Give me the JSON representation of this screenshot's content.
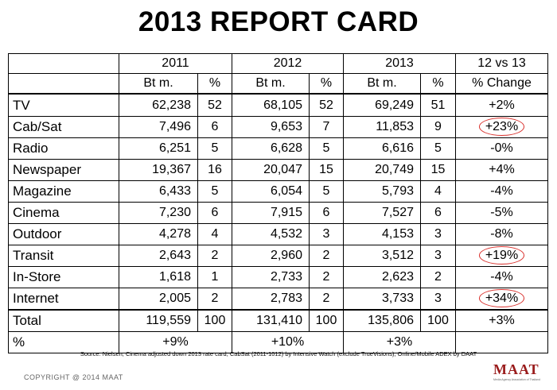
{
  "title": "2013 REPORT CARD",
  "headers": {
    "years": [
      "2011",
      "2012",
      "2013"
    ],
    "compare": "12 vs 13",
    "bt": "Bt m.",
    "pct": "%",
    "change": "% Change"
  },
  "rows": [
    {
      "label": "TV",
      "v2011": "62,238",
      "p2011": "52",
      "v2012": "68,105",
      "p2012": "52",
      "v2013": "69,249",
      "p2013": "51",
      "change": "+2%",
      "circled": false
    },
    {
      "label": "Cab/Sat",
      "v2011": "7,496",
      "p2011": "6",
      "v2012": "9,653",
      "p2012": "7",
      "v2013": "11,853",
      "p2013": "9",
      "change": "+23%",
      "circled": true
    },
    {
      "label": "Radio",
      "v2011": "6,251",
      "p2011": "5",
      "v2012": "6,628",
      "p2012": "5",
      "v2013": "6,616",
      "p2013": "5",
      "change": "-0%",
      "circled": false
    },
    {
      "label": "Newspaper",
      "v2011": "19,367",
      "p2011": "16",
      "v2012": "20,047",
      "p2012": "15",
      "v2013": "20,749",
      "p2013": "15",
      "change": "+4%",
      "circled": false
    },
    {
      "label": "Magazine",
      "v2011": "6,433",
      "p2011": "5",
      "v2012": "6,054",
      "p2012": "5",
      "v2013": "5,793",
      "p2013": "4",
      "change": "-4%",
      "circled": false
    },
    {
      "label": "Cinema",
      "v2011": "7,230",
      "p2011": "6",
      "v2012": "7,915",
      "p2012": "6",
      "v2013": "7,527",
      "p2013": "6",
      "change": "-5%",
      "circled": false
    },
    {
      "label": "Outdoor",
      "v2011": "4,278",
      "p2011": "4",
      "v2012": "4,532",
      "p2012": "3",
      "v2013": "4,153",
      "p2013": "3",
      "change": "-8%",
      "circled": false
    },
    {
      "label": "Transit",
      "v2011": "2,643",
      "p2011": "2",
      "v2012": "2,960",
      "p2012": "2",
      "v2013": "3,512",
      "p2013": "3",
      "change": "+19%",
      "circled": true
    },
    {
      "label": "In-Store",
      "v2011": "1,618",
      "p2011": "1",
      "v2012": "2,733",
      "p2012": "2",
      "v2013": "2,623",
      "p2013": "2",
      "change": "-4%",
      "circled": false
    },
    {
      "label": "Internet",
      "v2011": "2,005",
      "p2011": "2",
      "v2012": "2,783",
      "p2012": "2",
      "v2013": "3,733",
      "p2013": "3",
      "change": "+34%",
      "circled": true
    }
  ],
  "total": {
    "label": "Total",
    "v2011": "119,559",
    "p2011": "100",
    "v2012": "131,410",
    "p2012": "100",
    "v2013": "135,806",
    "p2013": "100",
    "change": "+3%"
  },
  "growth": {
    "label": "%",
    "g2011": "+9%",
    "g2012": "+10%",
    "g2013": "+3%"
  },
  "source": "Source: Nielsen, Cinema adjusted down 2013 rate card, CabSat (2011-1012) by Intensive Watch (exclude TrueVisions), Online/Mobile ADEX by DAAT",
  "copyright": "COPYRIGHT @ 2014 MAAT",
  "logo": {
    "text": "MAAT",
    "sub": "Media Agency Association of Thailand",
    "color": "#9a1c1c"
  },
  "colors": {
    "circle": "#d9302c"
  }
}
